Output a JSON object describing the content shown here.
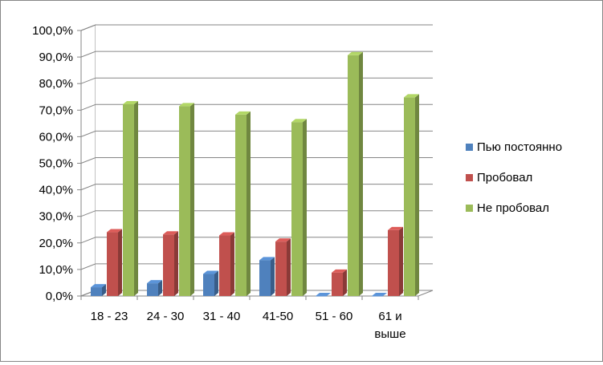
{
  "chart_data": {
    "type": "bar",
    "categories": [
      "18 - 23",
      "24 - 30",
      "31 - 40",
      "41-50",
      "51 - 60",
      "61 и выше"
    ],
    "series": [
      {
        "name": "Пью постоянно",
        "values": [
          0.033,
          0.048,
          0.083,
          0.135,
          0.0,
          0.0
        ]
      },
      {
        "name": "Пробовал",
        "values": [
          0.24,
          0.232,
          0.228,
          0.205,
          0.088,
          0.248
        ]
      },
      {
        "name": "Не пробовал",
        "values": [
          0.722,
          0.715,
          0.683,
          0.655,
          0.907,
          0.748
        ]
      }
    ],
    "ylim": [
      0,
      1
    ],
    "ytick_labels": [
      "0,0%",
      "10,0%",
      "20,0%",
      "30,0%",
      "40,0%",
      "50,0%",
      "60,0%",
      "70,0%",
      "80,0%",
      "90,0%",
      "100,0%"
    ],
    "grid": true,
    "legend_position": "right",
    "colors": {
      "Пью постоянно": "#4f81bd",
      "Пробовал": "#c0504d",
      "Не пробовал": "#9bbb59"
    }
  }
}
